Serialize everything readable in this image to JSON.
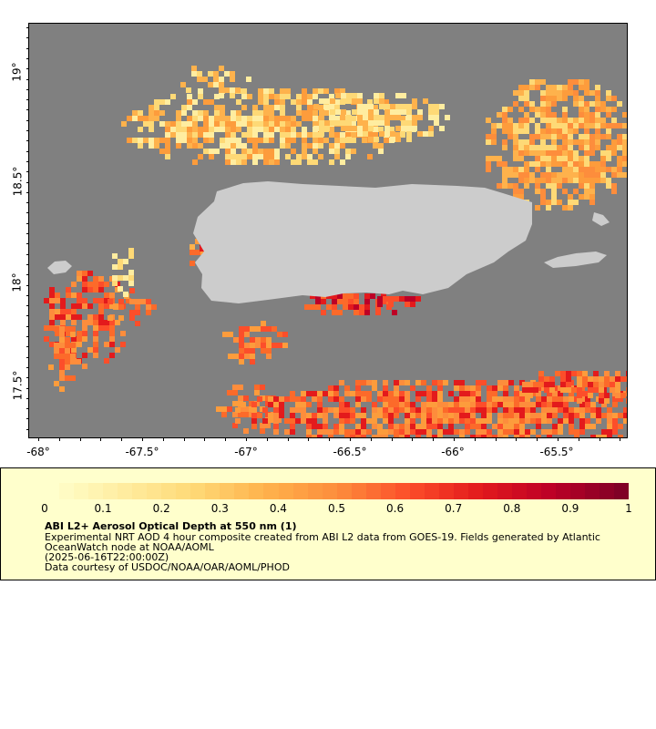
{
  "map": {
    "lat_labels": [
      "19°",
      "18.5°",
      "18°",
      "17.5°"
    ],
    "lon_labels": [
      "-68°",
      "-67.5°",
      "-67°",
      "-66.5°",
      "-66°",
      "-65.5°"
    ],
    "lat_range": [
      17.21,
      19.22
    ],
    "lon_range": [
      -68.02,
      -65.13
    ],
    "background_color": "#808080",
    "land_color": "#cccccc"
  },
  "legend": {
    "ticks": [
      "0",
      "0.1",
      "0.2",
      "0.3",
      "0.4",
      "0.5",
      "0.6",
      "0.7",
      "0.8",
      "0.9",
      "1"
    ],
    "title": "ABI L2+ Aerosol Optical Depth at 550 nm (1)",
    "line1": "Experimental NRT AOD 4 hour composite created from ABI L2 data from GOES-19. Fields generated by Atlantic",
    "line2": "OceanWatch node at NOAA/AOML",
    "line3": "(2025-06-16T22:00:00Z)",
    "line4": "Data courtesy of USDOC/NOAA/OAR/AOML/PHOD",
    "colors": [
      "#ffffcc",
      "#ffeda0",
      "#fed976",
      "#feb24c",
      "#fd8d3c",
      "#fc4e2a",
      "#e31a1c",
      "#bd0026",
      "#800026"
    ]
  }
}
